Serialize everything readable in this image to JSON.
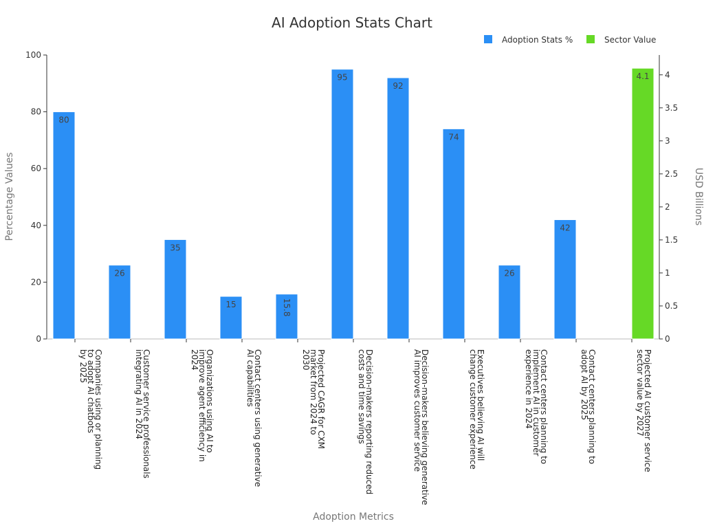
{
  "chart_data": {
    "type": "bar",
    "title": "AI Adoption Stats Chart",
    "xlabel": "Adoption Metrics",
    "ylabel": "Percentage Values",
    "y2label": "USD Billions",
    "ylim": [
      0,
      100
    ],
    "y2lim": [
      0,
      4.3
    ],
    "yticks": [
      0,
      20,
      40,
      60,
      80,
      100
    ],
    "y2ticks": [
      "0",
      "0.5",
      "1",
      "1.5",
      "2",
      "2.5",
      "3",
      "3.5",
      "4"
    ],
    "grid": false,
    "legend_position": "top-right",
    "categories": [
      [
        "Companies using or planning",
        "to adopt AI chatbots",
        "by 2025"
      ],
      [
        "Customer service professionals",
        "integrating AI in 2024"
      ],
      [
        "Organizations using AI to",
        "improve agent efficiency in",
        "2024"
      ],
      [
        "Contact centers using generative",
        "AI capabilities"
      ],
      [
        "Projected CAGR for CXM",
        "market from 2024 to",
        "2030"
      ],
      [
        "Decision-makers reporting reduced",
        "costs and time savings"
      ],
      [
        "Decision-makers believing generative",
        "AI improves customer service"
      ],
      [
        "Executives believing AI will",
        "change customer experience"
      ],
      [
        "Contact centers planning to",
        "implement AI in customer",
        "experience in 2024"
      ],
      [
        "Contact centers planning to",
        "adopt AI by 2025"
      ],
      [
        "Projected AI customer service",
        "sector value by 2027"
      ]
    ],
    "series": [
      {
        "name": "Adoption Stats %",
        "axis": "left",
        "color": "#2b8ff5",
        "values": [
          80,
          26,
          35,
          15,
          15.8,
          95,
          92,
          74,
          26,
          42,
          null
        ],
        "labels": [
          "80",
          "26",
          "35",
          "15",
          "15.8",
          "95",
          "92",
          "74",
          "26",
          "42",
          ""
        ]
      },
      {
        "name": "Sector Value",
        "axis": "right",
        "color": "#66d926",
        "values": [
          null,
          null,
          null,
          null,
          null,
          null,
          null,
          null,
          null,
          null,
          4.1
        ],
        "labels": [
          "",
          "",
          "",
          "",
          "",
          "",
          "",
          "",
          "",
          "",
          "4.1"
        ]
      }
    ]
  }
}
